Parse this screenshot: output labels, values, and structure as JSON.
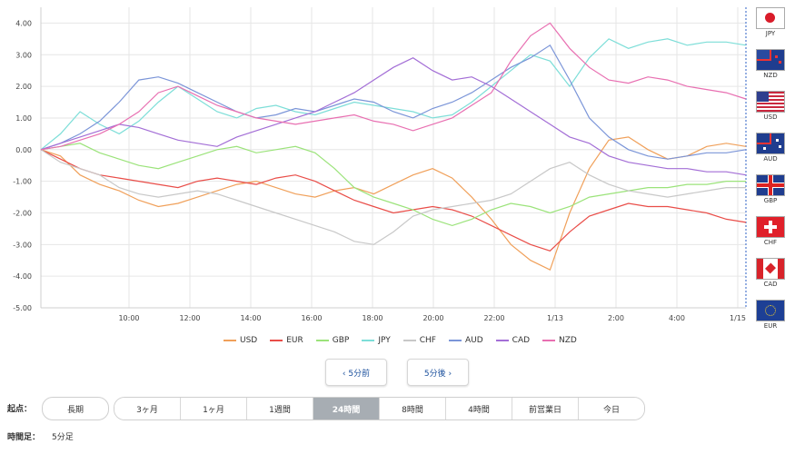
{
  "chart_data": {
    "type": "line",
    "yticks": [
      "4.00",
      "3.00",
      "2.00",
      "1.00",
      "0.00",
      "-1.00",
      "-2.00",
      "-3.00",
      "-4.00",
      "-5.00"
    ],
    "ylim": [
      -5,
      4.5
    ],
    "xticks": [
      "10:00",
      "12:00",
      "14:00",
      "16:00",
      "18:00",
      "20:00",
      "22:00",
      "1/13",
      "2:00",
      "4:00",
      "1/15"
    ],
    "grid": true,
    "series": [
      {
        "name": "USD",
        "color": "#f0a05a",
        "values": [
          0,
          -0.2,
          -0.8,
          -1.1,
          -1.3,
          -1.6,
          -1.8,
          -1.7,
          -1.5,
          -1.3,
          -1.1,
          -1.0,
          -1.2,
          -1.4,
          -1.5,
          -1.3,
          -1.2,
          -1.4,
          -1.1,
          -0.8,
          -0.6,
          -0.9,
          -1.5,
          -2.2,
          -3.0,
          -3.5,
          -3.8,
          -2.0,
          -0.6,
          0.3,
          0.4,
          0.0,
          -0.3,
          -0.2,
          0.1,
          0.2,
          0.1
        ]
      },
      {
        "name": "EUR",
        "color": "#e94d48",
        "values": [
          0,
          -0.3,
          -0.6,
          -0.8,
          -0.9,
          -1.0,
          -1.1,
          -1.2,
          -1.0,
          -0.9,
          -1.0,
          -1.1,
          -0.9,
          -0.8,
          -1.0,
          -1.3,
          -1.6,
          -1.8,
          -2.0,
          -1.9,
          -1.8,
          -1.9,
          -2.1,
          -2.4,
          -2.7,
          -3.0,
          -3.2,
          -2.6,
          -2.1,
          -1.9,
          -1.7,
          -1.8,
          -1.8,
          -1.9,
          -2.0,
          -2.2,
          -2.3
        ]
      },
      {
        "name": "GBP",
        "color": "#9be37a",
        "values": [
          0,
          0.1,
          0.2,
          -0.1,
          -0.3,
          -0.5,
          -0.6,
          -0.4,
          -0.2,
          0.0,
          0.1,
          -0.1,
          0.0,
          0.1,
          -0.1,
          -0.6,
          -1.2,
          -1.5,
          -1.7,
          -1.9,
          -2.2,
          -2.4,
          -2.2,
          -1.9,
          -1.7,
          -1.8,
          -2.0,
          -1.8,
          -1.5,
          -1.4,
          -1.3,
          -1.2,
          -1.2,
          -1.1,
          -1.1,
          -1.0,
          -1.0
        ]
      },
      {
        "name": "JPY",
        "color": "#7dded8",
        "values": [
          0,
          0.5,
          1.2,
          0.8,
          0.5,
          0.9,
          1.5,
          2.0,
          1.6,
          1.2,
          1.0,
          1.3,
          1.4,
          1.2,
          1.1,
          1.3,
          1.5,
          1.4,
          1.3,
          1.2,
          1.0,
          1.1,
          1.5,
          2.0,
          2.5,
          3.0,
          2.8,
          2.0,
          2.9,
          3.5,
          3.2,
          3.4,
          3.5,
          3.3,
          3.4,
          3.4,
          3.3
        ]
      },
      {
        "name": "CHF",
        "color": "#c8c8c8",
        "values": [
          0,
          -0.4,
          -0.6,
          -0.8,
          -1.2,
          -1.4,
          -1.5,
          -1.4,
          -1.3,
          -1.4,
          -1.6,
          -1.8,
          -2.0,
          -2.2,
          -2.4,
          -2.6,
          -2.9,
          -3.0,
          -2.6,
          -2.1,
          -1.9,
          -1.8,
          -1.7,
          -1.6,
          -1.4,
          -1.0,
          -0.6,
          -0.4,
          -0.8,
          -1.1,
          -1.3,
          -1.4,
          -1.5,
          -1.4,
          -1.3,
          -1.2,
          -1.2
        ]
      },
      {
        "name": "AUD",
        "color": "#7b95d8",
        "values": [
          0,
          0.2,
          0.5,
          0.9,
          1.5,
          2.2,
          2.3,
          2.1,
          1.8,
          1.5,
          1.2,
          1.0,
          1.1,
          1.3,
          1.2,
          1.4,
          1.6,
          1.5,
          1.2,
          1.0,
          1.3,
          1.5,
          1.8,
          2.2,
          2.6,
          2.9,
          3.3,
          2.2,
          1.0,
          0.4,
          0.0,
          -0.2,
          -0.3,
          -0.2,
          -0.1,
          -0.1,
          0.0
        ]
      },
      {
        "name": "CAD",
        "color": "#a36ed6",
        "values": [
          0,
          0.2,
          0.4,
          0.6,
          0.8,
          0.7,
          0.5,
          0.3,
          0.2,
          0.1,
          0.4,
          0.6,
          0.8,
          1.0,
          1.2,
          1.5,
          1.8,
          2.2,
          2.6,
          2.9,
          2.5,
          2.2,
          2.3,
          2.0,
          1.6,
          1.2,
          0.8,
          0.4,
          0.2,
          -0.2,
          -0.4,
          -0.5,
          -0.6,
          -0.6,
          -0.7,
          -0.7,
          -0.8
        ]
      },
      {
        "name": "NZD",
        "color": "#e86fb1",
        "values": [
          0,
          0.1,
          0.3,
          0.5,
          0.8,
          1.2,
          1.8,
          2.0,
          1.7,
          1.4,
          1.2,
          1.0,
          0.9,
          0.8,
          0.9,
          1.0,
          1.1,
          0.9,
          0.8,
          0.6,
          0.8,
          1.0,
          1.4,
          1.8,
          2.8,
          3.6,
          4.0,
          3.2,
          2.6,
          2.2,
          2.1,
          2.3,
          2.2,
          2.0,
          1.9,
          1.8,
          1.6
        ]
      }
    ]
  },
  "flags": [
    {
      "code": "JPY"
    },
    {
      "code": "NZD"
    },
    {
      "code": "USD"
    },
    {
      "code": "AUD"
    },
    {
      "code": "GBP"
    },
    {
      "code": "CHF"
    },
    {
      "code": "CAD"
    },
    {
      "code": "EUR"
    }
  ],
  "nav": {
    "prev": "‹ 5分前",
    "next": "5分後 ›"
  },
  "controls": {
    "start_label": "起点：",
    "range_pill": "長期",
    "segments": [
      "3ヶ月",
      "1ヶ月",
      "1週間",
      "24時間",
      "8時間",
      "4時間",
      "前営業日",
      "今日"
    ],
    "active_segment": "24時間",
    "bar_label": "時間足：",
    "bar_value": "5分足"
  }
}
